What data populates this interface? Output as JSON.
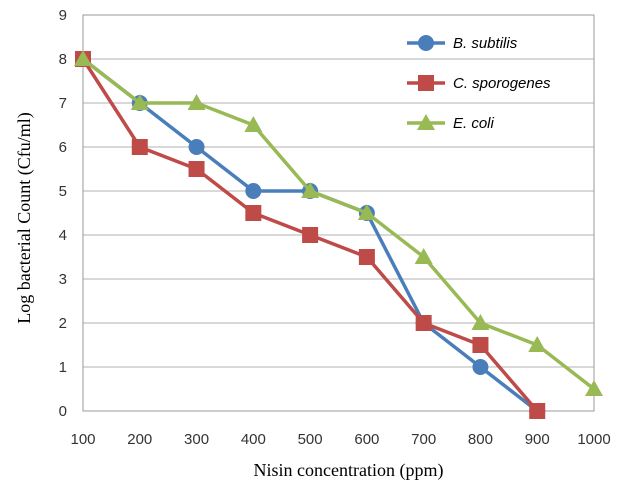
{
  "chart_data": {
    "type": "line",
    "xlabel": "Nisin concentration (ppm)",
    "ylabel": "Log bacterial Count (Cfu/ml)",
    "x_ticks": [
      "100",
      "200",
      "300",
      "400",
      "500",
      "600",
      "700",
      "800",
      "900",
      "1000"
    ],
    "y_ticks": [
      "0",
      "1",
      "2",
      "3",
      "4",
      "5",
      "6",
      "7",
      "8",
      "9"
    ],
    "xlim": [
      100,
      1000
    ],
    "ylim": [
      0,
      9
    ],
    "grid": "horizontal",
    "legend_position": "top-right",
    "series": [
      {
        "name": "B. subtilis",
        "color": "#4a7ebb",
        "marker": "circle",
        "x": [
          100,
          200,
          300,
          400,
          500,
          600,
          700,
          800,
          900
        ],
        "y": [
          8,
          7,
          6,
          5,
          5,
          4.5,
          2,
          1,
          0
        ]
      },
      {
        "name": "C. sporogenes",
        "color": "#be4b48",
        "marker": "square",
        "x": [
          100,
          200,
          300,
          400,
          500,
          600,
          700,
          800,
          900
        ],
        "y": [
          8,
          6,
          5.5,
          4.5,
          4,
          3.5,
          2,
          1.5,
          0
        ]
      },
      {
        "name": "E. coli",
        "color": "#98b954",
        "marker": "triangle",
        "x": [
          100,
          200,
          300,
          400,
          500,
          600,
          700,
          800,
          900,
          1000
        ],
        "y": [
          8,
          7,
          7,
          6.5,
          5,
          4.5,
          3.5,
          2,
          1.5,
          0.5
        ]
      }
    ]
  }
}
